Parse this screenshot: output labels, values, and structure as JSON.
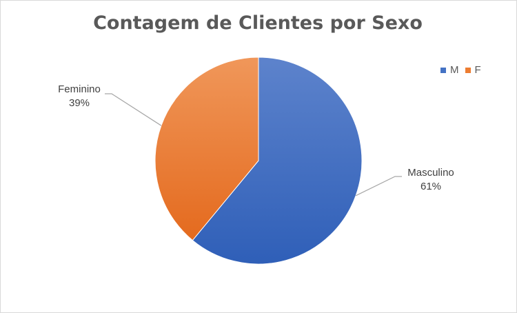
{
  "chart_data": {
    "type": "pie",
    "title": "Contagem de Clientes por Sexo",
    "legend": {
      "placement": "top-right",
      "items": [
        {
          "name": "M",
          "color": "#4472c4"
        },
        {
          "name": "F",
          "color": "#ed7d31"
        }
      ]
    },
    "slices": [
      {
        "label": "Masculino",
        "legend": "M",
        "value": 61,
        "value_label": "61%",
        "color": "#4472c4"
      },
      {
        "label": "Feminino",
        "legend": "F",
        "value": 39,
        "value_label": "39%",
        "color": "#ed7d31"
      }
    ],
    "start_angle_deg": 0,
    "direction": "clockwise"
  }
}
